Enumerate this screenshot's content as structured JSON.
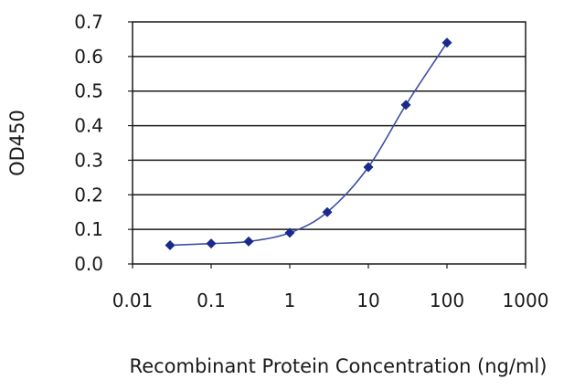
{
  "chart_data": {
    "type": "line",
    "title": "",
    "xlabel": "Recombinant Protein Concentration (ng/ml)",
    "ylabel": "OD450",
    "x_scale": "log",
    "xlim": [
      0.01,
      1000
    ],
    "ylim": [
      0,
      0.7
    ],
    "x_ticks": [
      "0.01",
      "0.1",
      "1",
      "10",
      "100",
      "1000"
    ],
    "y_ticks": [
      "0.0",
      "0.1",
      "0.2",
      "0.3",
      "0.4",
      "0.5",
      "0.6",
      "0.7"
    ],
    "grid": "horizontal",
    "series": [
      {
        "x": [
          0.03,
          0.1,
          0.3,
          1,
          3,
          10,
          30,
          100
        ],
        "y": [
          0.054,
          0.059,
          0.065,
          0.09,
          0.15,
          0.28,
          0.46,
          0.64
        ]
      }
    ],
    "colors": {
      "line": "#3b4fa6",
      "marker": "#1a2a8c",
      "grid": "#1a1a1a"
    }
  }
}
